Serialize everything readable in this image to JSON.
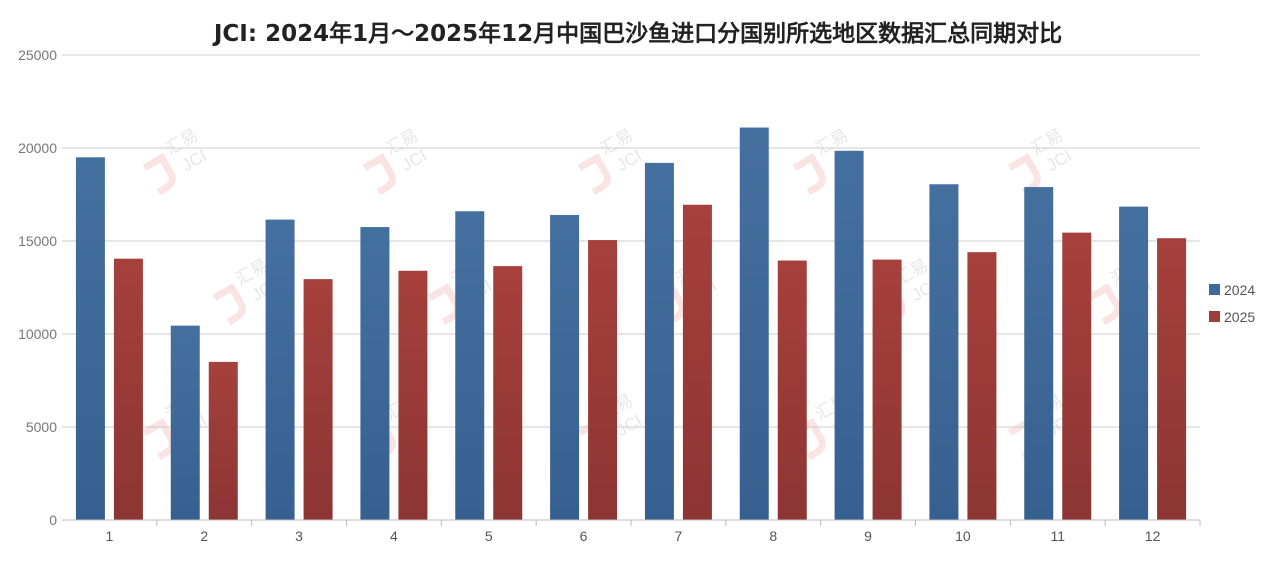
{
  "chart_data": {
    "type": "bar",
    "title": "JCI: 2024年1月～2025年12月中国巴沙鱼进口分国别所选地区数据汇总同期对比",
    "categories": [
      "1",
      "2",
      "3",
      "4",
      "5",
      "6",
      "7",
      "8",
      "9",
      "10",
      "11",
      "12"
    ],
    "series": [
      {
        "name": "2024",
        "color": "#3e6a9f",
        "values": [
          19500,
          10450,
          16150,
          15750,
          16600,
          16400,
          19200,
          21100,
          19850,
          18050,
          17900,
          16850
        ]
      },
      {
        "name": "2025",
        "color": "#a03e3b",
        "values": [
          14050,
          8500,
          12950,
          13400,
          13650,
          15050,
          16950,
          13950,
          14000,
          14400,
          15450,
          15150
        ]
      }
    ],
    "ylim": [
      0,
      25000
    ],
    "yticks": [
      0,
      5000,
      10000,
      15000,
      20000,
      25000
    ],
    "xlabel": "",
    "ylabel": "",
    "grid": true,
    "legend_position": "right"
  },
  "watermark": {
    "text_cn": "汇易",
    "text_en": "JCI"
  }
}
